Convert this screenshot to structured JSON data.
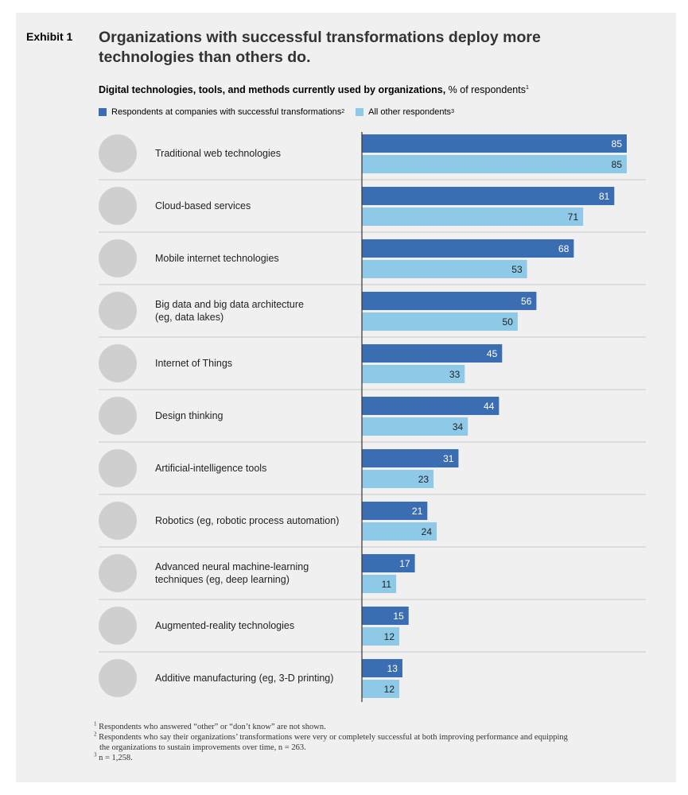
{
  "exhibit_label": "Exhibit 1",
  "headline": "Organizations with successful transformations deploy more technologies than others do.",
  "subtitle_bold": "Digital technologies, tools, and methods currently used by organizations,",
  "subtitle_rest": "% of respondents",
  "subtitle_sup": "1",
  "legend": [
    {
      "label": "Respondents at companies with successful transformations",
      "sup": "2",
      "color": "#3b6db3"
    },
    {
      "label": "All other respondents",
      "sup": "3",
      "color": "#8ecae8"
    }
  ],
  "colors": {
    "dark": "#3b6db3",
    "light": "#8ecae8",
    "icon": "#cfcfcf",
    "divider": "#c8c8c8",
    "axis": "#333333"
  },
  "chart_data": {
    "type": "bar",
    "orientation": "horizontal",
    "series": [
      {
        "name": "Respondents at companies with successful transformations",
        "values": [
          85,
          81,
          68,
          56,
          45,
          44,
          31,
          21,
          17,
          15,
          13
        ]
      },
      {
        "name": "All other respondents",
        "values": [
          85,
          71,
          53,
          50,
          33,
          34,
          23,
          24,
          11,
          12,
          12
        ]
      }
    ],
    "categories": [
      {
        "lines": [
          "Traditional web technologies"
        ],
        "icon": "monitor-icon"
      },
      {
        "lines": [
          "Cloud-based services"
        ],
        "icon": "cloud-icon"
      },
      {
        "lines": [
          "Mobile internet technologies"
        ],
        "icon": "smartphone-icon"
      },
      {
        "lines": [
          "Big data and big data architecture",
          "(eg, data lakes)"
        ],
        "icon": "server-icon"
      },
      {
        "lines": [
          "Internet of Things"
        ],
        "icon": "lamp-icon"
      },
      {
        "lines": [
          "Design thinking"
        ],
        "icon": "head-lightbulb-icon"
      },
      {
        "lines": [
          "Artificial-intelligence tools"
        ],
        "icon": "brain-circuit-icon"
      },
      {
        "lines": [
          "Robotics (eg, robotic process automation)"
        ],
        "icon": "robot-arm-icon"
      },
      {
        "lines": [
          "Advanced neural machine-learning",
          "techniques (eg, deep learning)"
        ],
        "icon": "brain-icon"
      },
      {
        "lines": [
          "Augmented-reality technologies"
        ],
        "icon": "cube-icon"
      },
      {
        "lines": [
          "Additive manufacturing (eg, 3-D printing)"
        ],
        "icon": "3d-printer-icon"
      }
    ],
    "xlim": [
      0,
      85
    ]
  },
  "footnotes": [
    {
      "sup": "1",
      "lines": [
        "Respondents who answered “other” or “don’t know” are not shown."
      ]
    },
    {
      "sup": "2",
      "lines": [
        "Respondents who say their organizations’ transformations were very or completely successful at both improving performance and equipping",
        "the organizations to sustain improvements over time, n = 263."
      ]
    },
    {
      "sup": "3",
      "lines": [
        "n = 1,258."
      ]
    }
  ]
}
